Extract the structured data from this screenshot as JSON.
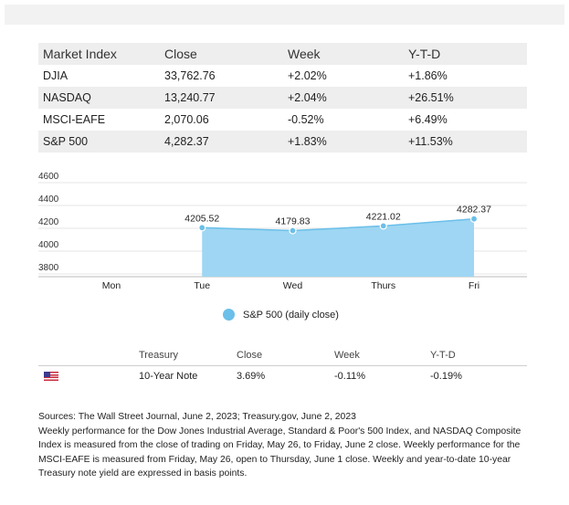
{
  "market": {
    "headers": [
      "Market Index",
      "Close",
      "Week",
      "Y-T-D"
    ],
    "rows": [
      [
        "DJIA",
        "33,762.76",
        "+2.02%",
        "+1.86%"
      ],
      [
        "NASDAQ",
        "13,240.77",
        "+2.04%",
        "+26.51%"
      ],
      [
        "MSCI-EAFE",
        "2,070.06",
        "-0.52%",
        "+6.49%"
      ],
      [
        "S&P 500",
        "4,282.37",
        "+1.83%",
        "+11.53%"
      ]
    ]
  },
  "chart_data": {
    "type": "area",
    "categories": [
      "Mon",
      "Tue",
      "Wed",
      "Thurs",
      "Fri"
    ],
    "series": [
      {
        "name": "S&P 500 (daily close)",
        "values": [
          null,
          4205.52,
          4179.83,
          4221.02,
          4282.37
        ],
        "labels": [
          "",
          "4205.52",
          "4179.83",
          "4221.02",
          "4282.37"
        ]
      }
    ],
    "yticks": [
      3800,
      4000,
      4200,
      4400,
      4600
    ],
    "ylim": [
      3800,
      4600
    ],
    "grid": true,
    "legend": "bottom",
    "colors": {
      "fill": "#9ed6f3",
      "line": "#6bbfe9",
      "marker": "#6bbfe9"
    }
  },
  "treasury": {
    "headers": [
      "",
      "Treasury",
      "Close",
      "Week",
      "Y-T-D"
    ],
    "row": {
      "flag_icon": "us-flag-icon",
      "name": "10-Year Note",
      "close": "3.69%",
      "week": "-0.11%",
      "ytd": "-0.19%"
    }
  },
  "sources": {
    "line1": "Sources: The Wall Street Journal, June 2, 2023; Treasury.gov, June 2, 2023",
    "line2": "Weekly performance for the Dow Jones Industrial Average, Standard & Poor's 500 Index, and NASDAQ Composite Index is measured from the close of trading on Friday, May 26, to Friday, June 2 close. Weekly performance for the MSCI-EAFE is measured from Friday, May 26, open to Thursday, June 1 close. Weekly and year-to-date 10-year Treasury note yield are expressed in basis points."
  }
}
